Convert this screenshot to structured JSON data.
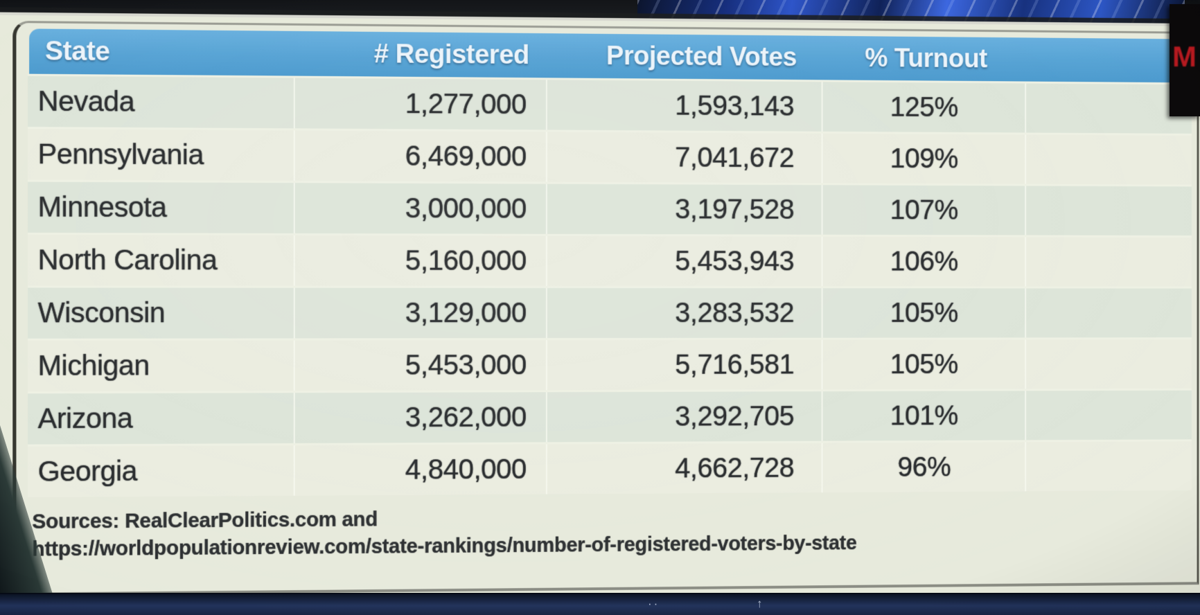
{
  "table": {
    "headers": [
      "State",
      "# Registered",
      "Projected Votes",
      "% Turnout"
    ],
    "rows": [
      [
        "Nevada",
        "1,277,000",
        "1,593,143",
        "125%"
      ],
      [
        "Pennsylvania",
        "6,469,000",
        "7,041,672",
        "109%"
      ],
      [
        "Minnesota",
        "3,000,000",
        "3,197,528",
        "107%"
      ],
      [
        "North Carolina",
        "5,160,000",
        "5,453,943",
        "106%"
      ],
      [
        "Wisconsin",
        "3,129,000",
        "3,283,532",
        "105%"
      ],
      [
        "Michigan",
        "5,453,000",
        "5,716,581",
        "105%"
      ],
      [
        "Arizona",
        "3,262,000",
        "3,292,705",
        "101%"
      ],
      [
        "Georgia",
        "4,840,000",
        "4,662,728",
        "96%"
      ]
    ]
  },
  "footer": {
    "line1": "Sources: RealClearPolitics.com and",
    "line2": "https://worldpopulationreview.com/state-rankings/number-of-registered-voters-by-state"
  },
  "overlay": {
    "red_letter": "M"
  },
  "taskbar": {
    "hidden_icons_glyph": "··",
    "up_arrow_glyph": "↑"
  },
  "colors": {
    "header_blue": "#54a3d6",
    "slide_background": "#e9ecde",
    "row_light": "#edefe2",
    "row_dark": "#dfe7db",
    "red_letter": "#b5191f",
    "taskbar_navy": "#22335b",
    "graphic_blue": "#2a52c8"
  },
  "chart_data": {
    "type": "table",
    "columns": [
      "State",
      "# Registered",
      "Projected Votes",
      "% Turnout"
    ],
    "rows": [
      {
        "state": "Nevada",
        "registered": 1277000,
        "projected_votes": 1593143,
        "turnout_pct": 125
      },
      {
        "state": "Pennsylvania",
        "registered": 6469000,
        "projected_votes": 7041672,
        "turnout_pct": 109
      },
      {
        "state": "Minnesota",
        "registered": 3000000,
        "projected_votes": 3197528,
        "turnout_pct": 107
      },
      {
        "state": "North Carolina",
        "registered": 5160000,
        "projected_votes": 5453943,
        "turnout_pct": 106
      },
      {
        "state": "Wisconsin",
        "registered": 3129000,
        "projected_votes": 3283532,
        "turnout_pct": 105
      },
      {
        "state": "Michigan",
        "registered": 5453000,
        "projected_votes": 5716581,
        "turnout_pct": 105
      },
      {
        "state": "Arizona",
        "registered": 3262000,
        "projected_votes": 3292705,
        "turnout_pct": 101
      },
      {
        "state": "Georgia",
        "registered": 4840000,
        "projected_votes": 4662728,
        "turnout_pct": 96
      }
    ],
    "sources": "Sources: RealClearPolitics.com and https://worldpopulationreview.com/state-rankings/number-of-registered-voters-by-state"
  }
}
